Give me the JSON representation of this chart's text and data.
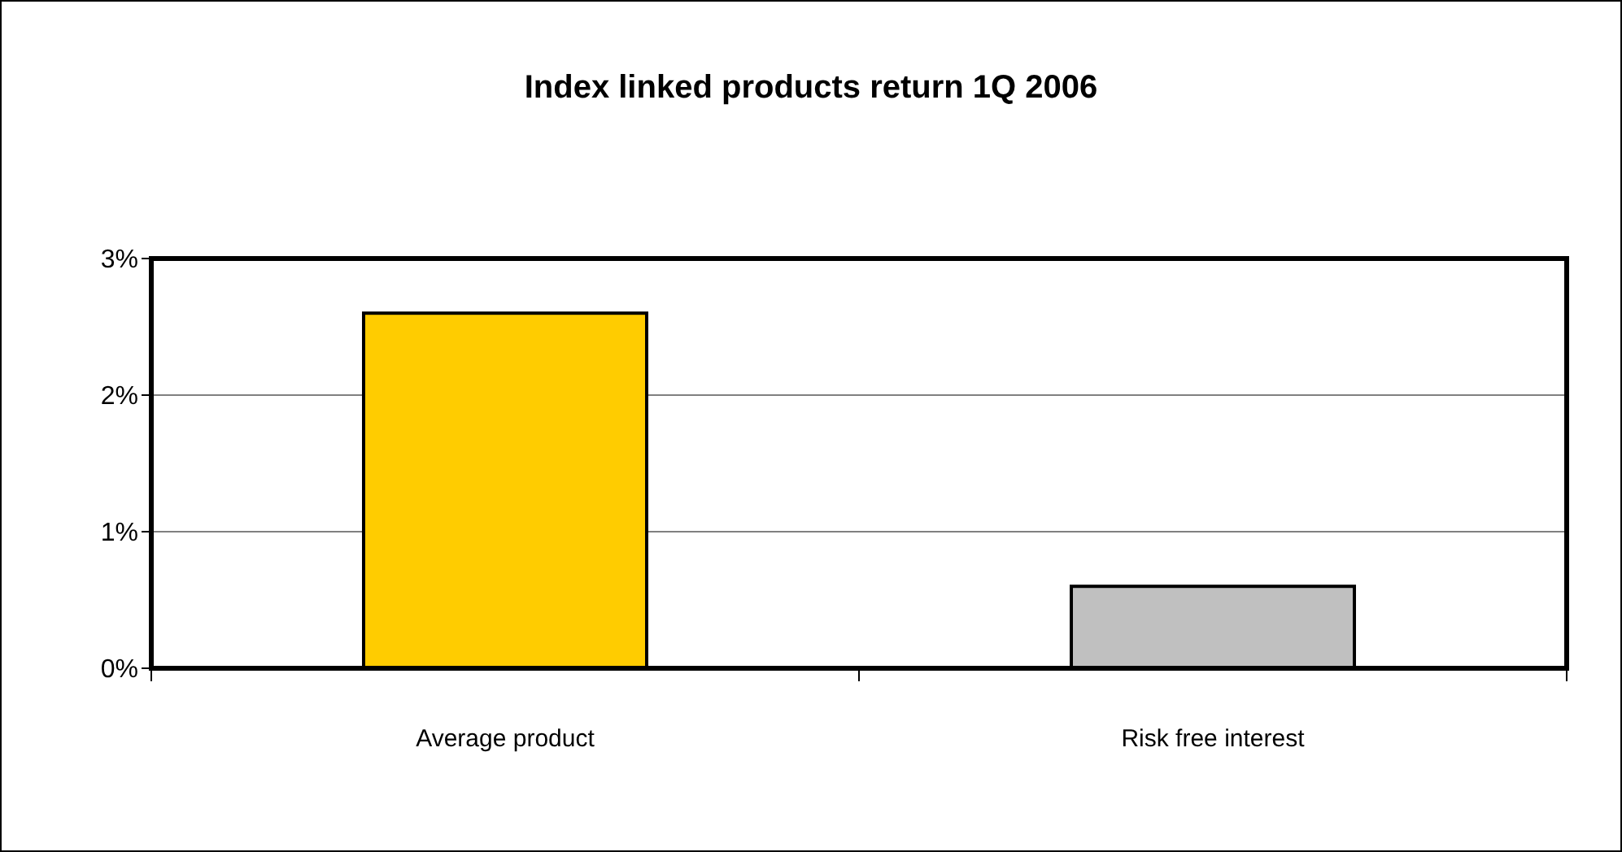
{
  "chart_data": {
    "type": "bar",
    "title": "Index linked products return 1Q 2006",
    "categories": [
      "Average product",
      "Risk free interest"
    ],
    "values": [
      2.6,
      0.6
    ],
    "colors": [
      "#ffcc00",
      "#c0c0c0"
    ],
    "ylim": [
      0,
      3
    ],
    "yticks": [
      {
        "value": 0,
        "label": "0%"
      },
      {
        "value": 1,
        "label": "1%"
      },
      {
        "value": 2,
        "label": "2%"
      },
      {
        "value": 3,
        "label": "3%"
      }
    ],
    "grid": "y"
  }
}
